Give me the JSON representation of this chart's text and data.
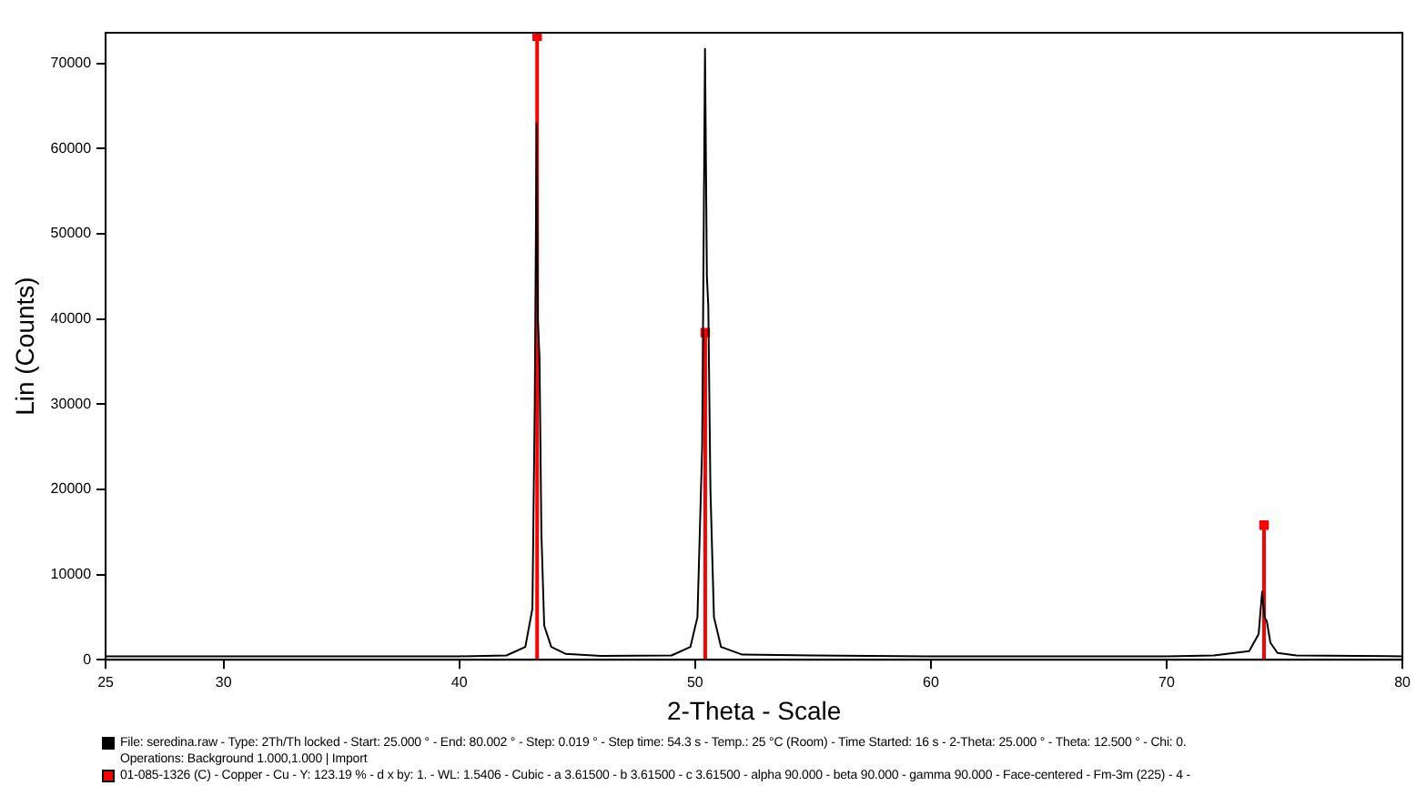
{
  "chart_data": {
    "type": "line",
    "xlabel": "2-Theta - Scale",
    "ylabel": "Lin (Counts)",
    "xlim": [
      25,
      80
    ],
    "xticks": [
      25,
      30,
      40,
      50,
      60,
      70,
      80
    ],
    "ylim": [
      0,
      73600
    ],
    "yticks": [
      0,
      10000,
      20000,
      30000,
      40000,
      50000,
      60000,
      70000
    ],
    "grid": false,
    "legend": "bottom",
    "marker": "none",
    "line_style": "solid",
    "series": [
      {
        "name": "File: seredina.raw - Type: 2Th/Th locked - Start: 25.000 ° - End: 80.002 ° - Step: 0.019 ° - Step time: 54.3 s - Temp.: 25 °C (Room) - Time Started: 16 s - 2-Theta: 25.000 ° - Theta: 12.500 ° - Chi: 0.\nOperations: Background 1.000,1.000 | Import",
        "color": "#000000",
        "x": [
          25,
          30,
          35,
          40,
          42,
          42.8,
          43.1,
          43.2,
          43.28,
          43.33,
          43.4,
          43.48,
          43.6,
          43.9,
          44.5,
          46,
          49,
          49.8,
          50.1,
          50.3,
          50.42,
          50.5,
          50.56,
          50.65,
          50.8,
          51.1,
          52,
          55,
          60,
          65,
          70,
          72,
          73.5,
          73.9,
          74.05,
          74.15,
          74.25,
          74.4,
          74.7,
          75.5,
          80
        ],
        "values": [
          400,
          400,
          400,
          400,
          500,
          1500,
          6000,
          30000,
          63000,
          40000,
          35500,
          15000,
          4000,
          1500,
          700,
          450,
          500,
          1500,
          5000,
          25000,
          71700,
          45000,
          41500,
          20000,
          5000,
          1500,
          600,
          500,
          400,
          400,
          400,
          500,
          1000,
          3000,
          8000,
          5000,
          4500,
          2000,
          800,
          500,
          400
        ]
      },
      {
        "name": "01-085-1326 (C) - Copper - Cu - Y: 123.19 % - d x by: 1. - WL: 1.5406 - Cubic - a 3.61500 - b 3.61500 - c 3.61500 - alpha 90.000 - beta 90.000 - gamma 90.000 - Face-centered - Fm-3m (225) - 4 -",
        "type": "lollipop",
        "marker": "square",
        "color": "#ff0000",
        "x": [
          43.3,
          50.43,
          74.13
        ],
        "values": [
          73200,
          38400,
          15800
        ]
      }
    ]
  }
}
